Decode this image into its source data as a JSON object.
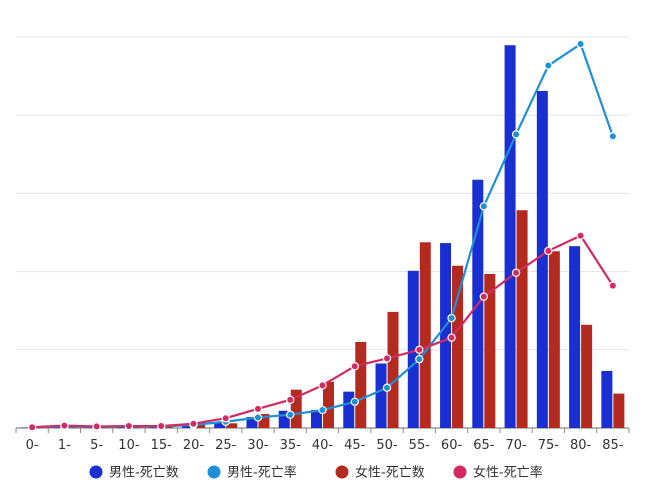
{
  "chart_data": {
    "type": "bar",
    "categories": [
      "0-",
      "1-",
      "5-",
      "10-",
      "15-",
      "20-",
      "25-",
      "30-",
      "35-",
      "40-",
      "45-",
      "50-",
      "55-",
      "60-",
      "65-",
      "70-",
      "75-",
      "80-",
      "85-"
    ],
    "ylim": [
      0,
      100
    ],
    "grid": true,
    "legend_position": "bottom",
    "series": [
      {
        "name": "男性-死亡数",
        "kind": "bar",
        "color": "#1a2fd1",
        "values": [
          0.1,
          0.5,
          0.4,
          0.4,
          0.5,
          0.8,
          1.5,
          2.8,
          4.4,
          4.6,
          9.3,
          16.5,
          40.2,
          47.3,
          63.5,
          97.9,
          86.2,
          46.5,
          14.6
        ]
      },
      {
        "name": "男性-死亡率",
        "kind": "line",
        "color": "#1e90d8",
        "values": [
          0.2,
          0.4,
          0.3,
          0.4,
          0.4,
          0.8,
          1.6,
          2.7,
          3.4,
          4.6,
          6.7,
          10.3,
          17.6,
          28.1,
          56.7,
          75.1,
          92.7,
          98.2,
          74.6
        ]
      },
      {
        "name": "女性-死亡数",
        "kind": "bar",
        "color": "#b52a1e",
        "values": [
          0.2,
          0.5,
          0.4,
          0.5,
          0.5,
          0.8,
          1.2,
          3.6,
          9.8,
          11.8,
          22.0,
          29.7,
          47.5,
          41.5,
          39.4,
          55.7,
          45.2,
          26.4,
          8.8
        ]
      },
      {
        "name": "女性-死亡率",
        "kind": "line",
        "color": "#d42a63",
        "values": [
          0.2,
          0.6,
          0.4,
          0.5,
          0.5,
          1.1,
          2.5,
          4.9,
          7.2,
          10.9,
          15.8,
          17.8,
          20.0,
          23.1,
          33.6,
          39.7,
          45.3,
          49.2,
          36.4
        ]
      }
    ]
  }
}
